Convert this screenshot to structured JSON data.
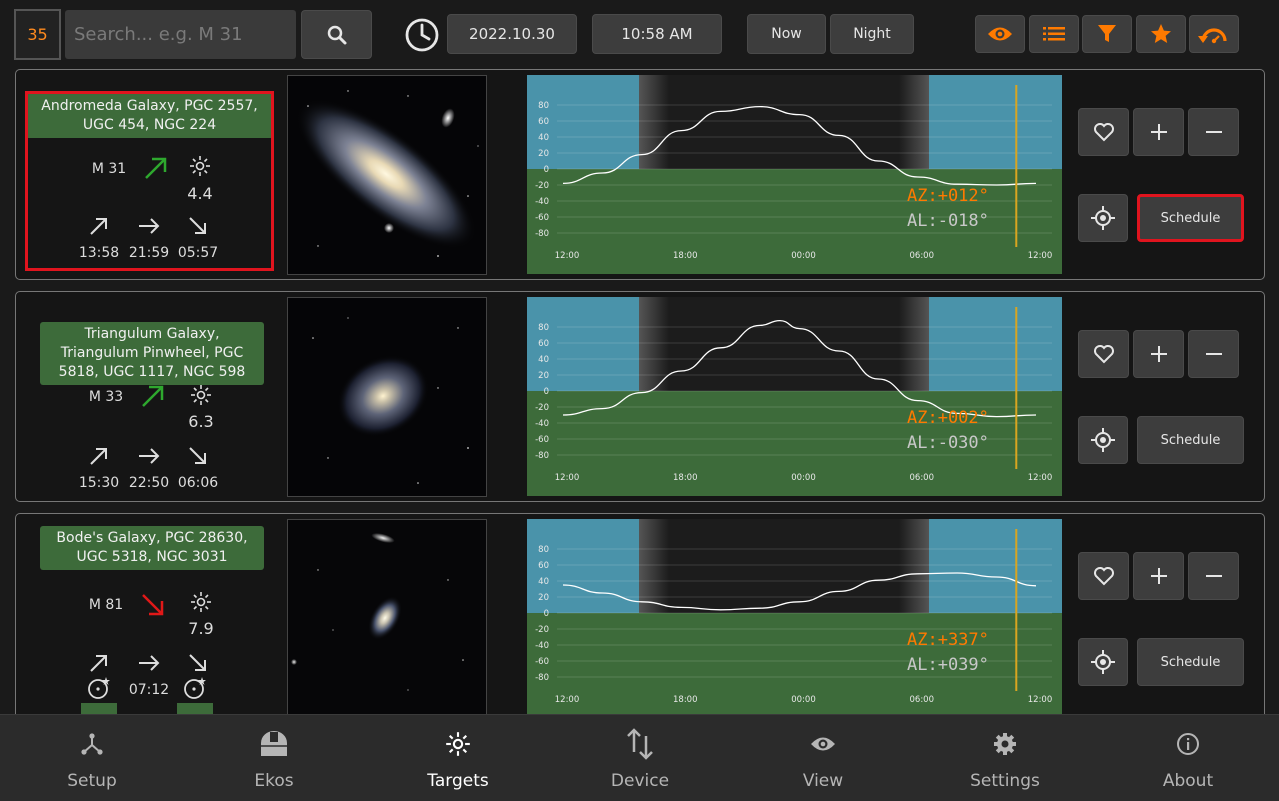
{
  "topbar": {
    "count": "35",
    "search_placeholder": "Search... e.g. M 31",
    "date": "2022.10.30",
    "time": "10:58 AM",
    "now_label": "Now",
    "night_label": "Night",
    "accent": "#ff7a00",
    "icons": [
      "eye-icon",
      "list-icon",
      "filter-icon",
      "star-icon",
      "undo-icon"
    ]
  },
  "targets": [
    {
      "name": "Andromeda Galaxy, PGC 2557, UGC 454, NGC 224",
      "designation": "M 31",
      "trend": "rising",
      "magnitude": "4.4",
      "rise": "13:58",
      "transit": "21:59",
      "set": "05:57",
      "az": "AZ:+012°",
      "al": "AL:-018°",
      "schedule_label": "Schedule",
      "selected": true
    },
    {
      "name": "Triangulum Galaxy, Triangulum Pinwheel, PGC 5818, UGC 1117, NGC 598",
      "designation": "M 33",
      "trend": "rising",
      "magnitude": "6.3",
      "rise": "15:30",
      "transit": "22:50",
      "set": "06:06",
      "az": "AZ:+002°",
      "al": "AL:-030°",
      "schedule_label": "Schedule",
      "selected": false
    },
    {
      "name": "Bode's Galaxy, PGC 28630, UGC 5318, NGC 3031",
      "designation": "M 81",
      "trend": "setting",
      "magnitude": "7.9",
      "rise": "",
      "transit": "07:12",
      "set": "",
      "az": "AZ:+337°",
      "al": "AL:+039°",
      "schedule_label": "Schedule",
      "selected": false
    }
  ],
  "chart_data": [
    {
      "type": "line",
      "x_ticks": [
        "12:00",
        "18:00",
        "00:00",
        "06:00",
        "12:00"
      ],
      "y_ticks": [
        "80",
        "60",
        "40",
        "20",
        "0",
        "-20",
        "-40",
        "-60",
        "-80"
      ],
      "ylim": [
        -90,
        90
      ],
      "x": [
        0,
        2,
        4,
        6,
        8,
        10,
        12,
        14,
        16,
        18,
        20,
        22,
        24
      ],
      "series": [
        {
          "values": [
            -18,
            -5,
            18,
            48,
            72,
            78,
            68,
            42,
            10,
            -10,
            -19,
            -20,
            -18
          ]
        }
      ],
      "now_hour": 23
    },
    {
      "type": "line",
      "x_ticks": [
        "12:00",
        "18:00",
        "00:00",
        "06:00",
        "12:00"
      ],
      "y_ticks": [
        "80",
        "60",
        "40",
        "20",
        "0",
        "-20",
        "-40",
        "-60",
        "-80"
      ],
      "ylim": [
        -90,
        90
      ],
      "x": [
        0,
        2,
        4,
        6,
        8,
        10,
        11,
        12,
        14,
        16,
        18,
        20,
        22,
        24
      ],
      "series": [
        {
          "values": [
            -30,
            -22,
            -2,
            25,
            54,
            82,
            88,
            78,
            50,
            15,
            -12,
            -28,
            -32,
            -30
          ]
        }
      ],
      "now_hour": 23
    },
    {
      "type": "line",
      "x_ticks": [
        "12:00",
        "18:00",
        "00:00",
        "06:00",
        "12:00"
      ],
      "y_ticks": [
        "80",
        "60",
        "40",
        "20",
        "0",
        "-20",
        "-40",
        "-60",
        "-80"
      ],
      "ylim": [
        -90,
        90
      ],
      "x": [
        0,
        2,
        4,
        6,
        8,
        10,
        12,
        14,
        16,
        18,
        20,
        22,
        24
      ],
      "series": [
        {
          "values": [
            35,
            25,
            14,
            7,
            4,
            6,
            14,
            27,
            41,
            49,
            50,
            45,
            34
          ]
        }
      ],
      "now_hour": 23
    }
  ],
  "nav": [
    {
      "label": "Setup",
      "icon": "setup-icon"
    },
    {
      "label": "Ekos",
      "icon": "ekos-icon"
    },
    {
      "label": "Targets",
      "icon": "targets-icon",
      "active": true
    },
    {
      "label": "Device",
      "icon": "device-icon"
    },
    {
      "label": "View",
      "icon": "view-icon"
    },
    {
      "label": "Settings",
      "icon": "settings-icon"
    },
    {
      "label": "About",
      "icon": "about-icon"
    }
  ]
}
